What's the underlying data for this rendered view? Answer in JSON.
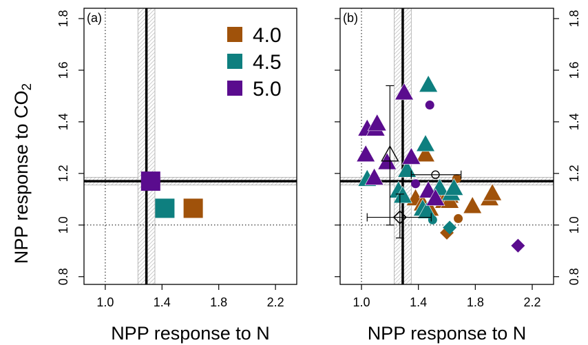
{
  "figure": {
    "shared_ylabel": "NPP response to CO",
    "shared_ylabel_sub": "2"
  },
  "colors": {
    "4.0": "#a0520a",
    "4.5": "#0e7f7f",
    "5.0": "#5a0c8e",
    "band": "#bdbdbd",
    "reference": "#000000"
  },
  "chart_data": [
    {
      "panel_label": "(a)",
      "type": "scatter",
      "xlabel": "NPP response to N",
      "ylabel": "NPP response to CO2",
      "xlim": [
        0.85,
        2.35
      ],
      "ylim": [
        0.77,
        1.84
      ],
      "xticks": [
        "1.0",
        "1.4",
        "1.8",
        "2.2"
      ],
      "xtick_values": [
        1.0,
        1.4,
        1.8,
        2.2
      ],
      "yticks": [
        "0.8",
        "1.0",
        "1.2",
        "1.4",
        "1.6",
        "1.8"
      ],
      "ytick_values": [
        0.8,
        1.0,
        1.2,
        1.4,
        1.6,
        1.8
      ],
      "ytick_side": "left",
      "dotted_lines": {
        "x": 1.0,
        "y": 1.0
      },
      "reference": {
        "x": 1.29,
        "x_band": [
          1.23,
          1.35
        ],
        "y": 1.17,
        "y_band": [
          1.155,
          1.185
        ]
      },
      "legend": {
        "placement": "top-right",
        "entries": [
          {
            "label": "4.0",
            "color_key": "4.0"
          },
          {
            "label": "4.5",
            "color_key": "4.5"
          },
          {
            "label": "5.0",
            "color_key": "5.0"
          }
        ]
      },
      "series": [
        {
          "name": "4.0",
          "shape": "square",
          "points": [
            [
              1.62,
              1.065
            ]
          ]
        },
        {
          "name": "4.5",
          "shape": "square",
          "points": [
            [
              1.42,
              1.065
            ]
          ]
        },
        {
          "name": "5.0",
          "shape": "square",
          "points": [
            [
              1.32,
              1.17
            ]
          ]
        }
      ],
      "observations": []
    },
    {
      "panel_label": "(b)",
      "type": "scatter",
      "xlabel": "NPP response to N",
      "ylabel": "NPP response to CO2",
      "xlim": [
        0.85,
        2.35
      ],
      "ylim": [
        0.77,
        1.84
      ],
      "xticks": [
        "1.0",
        "1.4",
        "1.8",
        "2.2"
      ],
      "xtick_values": [
        1.0,
        1.4,
        1.8,
        2.2
      ],
      "yticks": [
        "0.8",
        "1.0",
        "1.2",
        "1.4",
        "1.6",
        "1.8"
      ],
      "ytick_values": [
        0.8,
        1.0,
        1.2,
        1.4,
        1.6,
        1.8
      ],
      "ytick_side": "right",
      "dotted_lines": {
        "x": 1.0,
        "y": 1.0
      },
      "reference": {
        "x": 1.29,
        "x_band": [
          1.23,
          1.35
        ],
        "y": 1.17,
        "y_band": [
          1.155,
          1.185
        ]
      },
      "legend": null,
      "series": [
        {
          "name": "4.0",
          "triangles": [
            [
              1.45,
              1.27
            ],
            [
              1.38,
              1.1
            ],
            [
              1.43,
              1.08
            ],
            [
              1.48,
              1.06
            ],
            [
              1.56,
              1.13
            ],
            [
              1.62,
              1.11
            ],
            [
              1.58,
              1.09
            ],
            [
              1.62,
              1.09
            ],
            [
              1.78,
              1.07
            ],
            [
              1.9,
              1.1
            ],
            [
              1.92,
              1.12
            ]
          ],
          "circles": [
            [
              1.67,
              1.18
            ],
            [
              1.68,
              1.025
            ]
          ],
          "diamonds": [
            [
              1.6,
              0.97
            ]
          ]
        },
        {
          "name": "4.5",
          "triangles": [
            [
              1.47,
              1.54
            ],
            [
              1.45,
              1.31
            ],
            [
              1.32,
              1.21
            ],
            [
              1.04,
              1.175
            ],
            [
              1.26,
              1.13
            ],
            [
              1.29,
              1.11
            ],
            [
              1.43,
              1.06
            ],
            [
              1.46,
              1.05
            ],
            [
              1.55,
              1.14
            ],
            [
              1.63,
              1.12
            ],
            [
              1.65,
              1.14
            ]
          ],
          "circles": [
            [
              1.5,
              1.02
            ]
          ],
          "diamonds": [
            [
              1.62,
              0.99
            ]
          ]
        },
        {
          "name": "5.0",
          "triangles": [
            [
              1.3,
              1.51
            ],
            [
              1.04,
              1.37
            ],
            [
              1.1,
              1.37
            ],
            [
              1.11,
              1.39
            ],
            [
              1.03,
              1.27
            ],
            [
              1.18,
              1.24
            ],
            [
              1.35,
              1.26
            ],
            [
              1.09,
              1.18
            ],
            [
              1.47,
              1.13
            ],
            [
              1.52,
              1.1
            ]
          ],
          "circles": [
            [
              1.48,
              1.465
            ],
            [
              1.38,
              1.16
            ]
          ],
          "diamonds": [
            [
              2.1,
              0.92
            ]
          ]
        }
      ],
      "observations": [
        {
          "shape": "triangle",
          "x": 1.2,
          "y": 1.27,
          "yerr": [
            1.0,
            1.54
          ],
          "xerr": null
        },
        {
          "shape": "circle",
          "x": 1.52,
          "y": 1.195,
          "yerr": null,
          "xerr": [
            1.35,
            1.7
          ]
        },
        {
          "shape": "diamond",
          "x": 1.27,
          "y": 1.03,
          "yerr": [
            0.95,
            1.12
          ],
          "xerr": [
            1.04,
            1.49
          ]
        }
      ]
    }
  ]
}
